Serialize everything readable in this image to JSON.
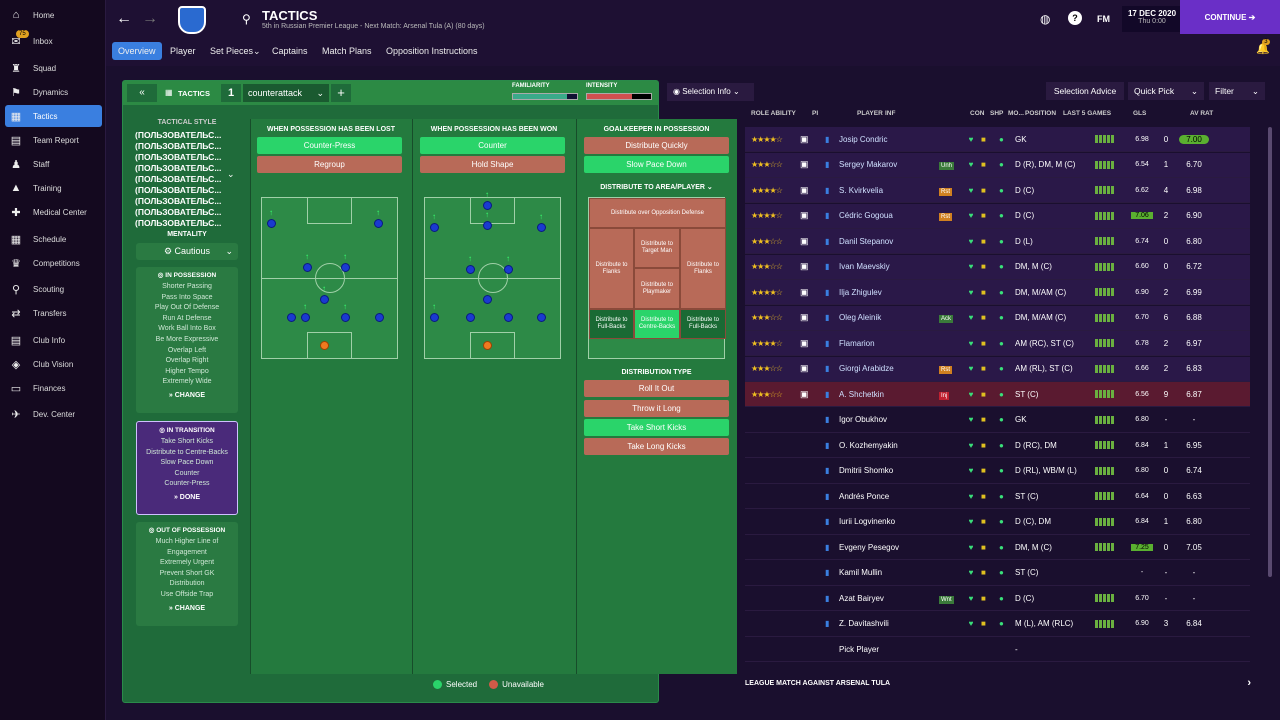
{
  "sidebar": {
    "items": [
      {
        "label": "Home",
        "icon": "home-icon"
      },
      {
        "label": "Inbox",
        "icon": "inbox-icon",
        "badge": "75"
      },
      {
        "label": "Squad",
        "icon": "squad-icon"
      },
      {
        "label": "Dynamics",
        "icon": "dynamics-icon"
      },
      {
        "label": "Tactics",
        "icon": "tactics-icon"
      },
      {
        "label": "Team Report",
        "icon": "report-icon"
      },
      {
        "label": "Staff",
        "icon": "staff-icon"
      },
      {
        "label": "Training",
        "icon": "training-icon"
      },
      {
        "label": "Medical Center",
        "icon": "medical-icon"
      },
      {
        "label": "Schedule",
        "icon": "schedule-icon"
      },
      {
        "label": "Competitions",
        "icon": "trophy-icon"
      },
      {
        "label": "Scouting",
        "icon": "scouting-icon"
      },
      {
        "label": "Transfers",
        "icon": "transfers-icon"
      },
      {
        "label": "Club Info",
        "icon": "club-info-icon"
      },
      {
        "label": "Club Vision",
        "icon": "vision-icon"
      },
      {
        "label": "Finances",
        "icon": "finances-icon"
      },
      {
        "label": "Dev. Center",
        "icon": "dev-icon"
      }
    ]
  },
  "header": {
    "title": "TACTICS",
    "subtitle": "5th in Russian Premier League - Next Match: Arsenal Tula (A) (80 days)",
    "date": "17 DEC 2020",
    "time": "Thu 0:00",
    "fm": "FM",
    "continue": "CONTINUE",
    "notif": "3"
  },
  "tabs": [
    "Overview",
    "Player",
    "Set Pieces",
    "Captains",
    "Match Plans",
    "Opposition Instructions"
  ],
  "tactics": {
    "label": "TACTICS",
    "slot": "1",
    "name": "counterattack",
    "familiarity": "FAMILIARITY",
    "intensity": "INTENSITY",
    "style_title": "TACTICAL STYLE",
    "style_lines": [
      "(ПОЛЬЗОВАТЕЛЬС...",
      "(ПОЛЬЗОВАТЕЛЬС...",
      "(ПОЛЬЗОВАТЕЛЬС...",
      "(ПОЛЬЗОВАТЕЛЬС...",
      "(ПОЛЬЗОВАТЕЛЬС...",
      "(ПОЛЬЗОВАТЕЛЬС...",
      "(ПОЛЬЗОВАТЕЛЬС...",
      "(ПОЛЬЗОВАТЕЛЬС...",
      "(ПОЛЬЗОВАТЕЛЬС..."
    ],
    "mentality_title": "MENTALITY",
    "mentality": "Cautious",
    "in_possession": {
      "title": "IN POSSESSION",
      "items": [
        "Shorter Passing",
        "Pass Into Space",
        "Play Out Of Defense",
        "Run At Defense",
        "Work Ball Into Box",
        "Be More Expressive",
        "Overlap Left",
        "Overlap Right",
        "Higher Tempo",
        "Extremely Wide"
      ],
      "action": "CHANGE"
    },
    "in_transition": {
      "title": "IN TRANSITION",
      "items": [
        "Take Short Kicks",
        "Distribute to Centre-Backs",
        "Slow Pace Down",
        "Counter",
        "Counter-Press"
      ],
      "action": "DONE"
    },
    "out_possession": {
      "title": "OUT OF POSSESSION",
      "items": [
        "Much Higher Line of",
        "Engagement",
        "Extremely Urgent",
        "Prevent Short GK",
        "Distribution",
        "Use Offside Trap"
      ],
      "action": "CHANGE"
    },
    "lost": {
      "title": "WHEN POSSESSION HAS BEEN LOST",
      "opts": [
        "Counter-Press",
        "Regroup"
      ]
    },
    "won": {
      "title": "WHEN POSSESSION HAS BEEN WON",
      "opts": [
        "Counter",
        "Hold Shape"
      ]
    },
    "gk": {
      "title": "GOALKEEPER IN POSSESSION",
      "opts": [
        "Distribute Quickly",
        "Slow Pace Down"
      ]
    },
    "dist_area": {
      "title": "DISTRIBUTE TO AREA/PLAYER",
      "top": "Distribute over Opposition Defense",
      "left": "Distribute to Flanks",
      "tm": "Distribute to Target Man",
      "pm": "Distribute to Playmaker",
      "right": "Distribute to Flanks",
      "fbl": "Distribute to Full-Backs",
      "cb": "Distribute to Centre-Backs",
      "fbr": "Distribute to Full-Backs"
    },
    "dist_type": {
      "title": "DISTRIBUTION TYPE",
      "opts": [
        "Roll It Out",
        "Throw it Long",
        "Take Short Kicks",
        "Take Long Kicks"
      ]
    },
    "legend": {
      "selected": "Selected",
      "unavailable": "Unavailable"
    }
  },
  "colors": {
    "selected": "#2ad46a",
    "unavailable": "#b86a58",
    "accent": "#3a7fe0",
    "purple": "#6a2fc7"
  },
  "right": {
    "selection_info": "Selection Info",
    "selection_advice": "Selection Advice",
    "quick_pick": "Quick Pick",
    "filter": "Filter",
    "cols": [
      "ROLE ABILITY",
      "PI",
      "PLAYER",
      "INF",
      "CON",
      "SHP",
      "MO...",
      "POSITION",
      "LAST 5 GAMES",
      "GLS",
      "AV RAT"
    ],
    "players": [
      {
        "stars": 3.5,
        "name": "Josip Condric",
        "inf": "",
        "pos": "GK",
        "rating": "6.98",
        "gls": "0",
        "av": "7.00"
      },
      {
        "stars": 2.5,
        "name": "Sergey Makarov",
        "inf": "Unh",
        "pos": "D (R), DM, M (C)",
        "rating": "6.54",
        "gls": "1",
        "av": "6.70"
      },
      {
        "stars": 4,
        "name": "S. Kvirkvelia",
        "inf": "Rst",
        "pos": "D (C)",
        "rating": "6.62",
        "gls": "4",
        "av": "6.98"
      },
      {
        "stars": 3.5,
        "name": "Cédric Gogoua",
        "inf": "Rst",
        "pos": "D (C)",
        "rating": "7.06",
        "gls": "2",
        "av": "6.90"
      },
      {
        "stars": 2.5,
        "name": "Danil Stepanov",
        "inf": "",
        "pos": "D (L)",
        "rating": "6.74",
        "gls": "0",
        "av": "6.80"
      },
      {
        "stars": 3,
        "name": "Ivan Maevskiy",
        "inf": "",
        "pos": "DM, M (C)",
        "rating": "6.60",
        "gls": "0",
        "av": "6.72"
      },
      {
        "stars": 3.5,
        "name": "Ilja Zhigulev",
        "inf": "",
        "pos": "DM, M/AM (C)",
        "rating": "6.90",
        "gls": "2",
        "av": "6.99"
      },
      {
        "stars": 2.5,
        "name": "Oleg Aleinik",
        "inf": "Ack",
        "pos": "DM, M/AM (C)",
        "rating": "6.70",
        "gls": "6",
        "av": "6.88"
      },
      {
        "stars": 4,
        "name": "Flamarion",
        "inf": "",
        "pos": "AM (RC), ST (C)",
        "rating": "6.78",
        "gls": "2",
        "av": "6.97"
      },
      {
        "stars": 2.5,
        "name": "Giorgi Arabidze",
        "inf": "Rst",
        "pos": "AM (RL), ST (C)",
        "rating": "6.66",
        "gls": "2",
        "av": "6.83"
      },
      {
        "stars": 3,
        "name": "A. Shchetkin",
        "inf": "Inj",
        "pos": "ST (C)",
        "rating": "6.56",
        "gls": "9",
        "av": "6.87"
      },
      {
        "stars": 0,
        "name": "Igor Obukhov",
        "inf": "",
        "pos": "GK",
        "rating": "6.80",
        "gls": "-",
        "av": "-"
      },
      {
        "stars": 0,
        "name": "O. Kozhemyakin",
        "inf": "",
        "pos": "D (RC), DM",
        "rating": "6.84",
        "gls": "1",
        "av": "6.95"
      },
      {
        "stars": 0,
        "name": "Dmitrii Shomko",
        "inf": "",
        "pos": "D (RL), WB/M (L)",
        "rating": "6.80",
        "gls": "0",
        "av": "6.74"
      },
      {
        "stars": 0,
        "name": "Andrés Ponce",
        "inf": "",
        "pos": "ST (C)",
        "rating": "6.64",
        "gls": "0",
        "av": "6.63"
      },
      {
        "stars": 0,
        "name": "Iurii Logvinenko",
        "inf": "",
        "pos": "D (C), DM",
        "rating": "6.84",
        "gls": "1",
        "av": "6.80"
      },
      {
        "stars": 0,
        "name": "Evgeny Pesegov",
        "inf": "",
        "pos": "DM, M (C)",
        "rating": "7.25",
        "gls": "0",
        "av": "7.05"
      },
      {
        "stars": 0,
        "name": "Kamil Mullin",
        "inf": "",
        "pos": "ST (C)",
        "rating": "-",
        "gls": "-",
        "av": "-"
      },
      {
        "stars": 0,
        "name": "Azat Bairyev",
        "inf": "Wnt",
        "pos": "D (C)",
        "rating": "6.70",
        "gls": "-",
        "av": "-"
      },
      {
        "stars": 0,
        "name": "Z. Davitashvili",
        "inf": "",
        "pos": "M (L), AM (RLC)",
        "rating": "6.90",
        "gls": "3",
        "av": "6.84"
      },
      {
        "stars": 0,
        "name": "Pick Player",
        "inf": "",
        "pos": "-",
        "rating": "",
        "gls": "",
        "av": ""
      }
    ],
    "bottom": "LEAGUE MATCH AGAINST ARSENAL TULA"
  }
}
